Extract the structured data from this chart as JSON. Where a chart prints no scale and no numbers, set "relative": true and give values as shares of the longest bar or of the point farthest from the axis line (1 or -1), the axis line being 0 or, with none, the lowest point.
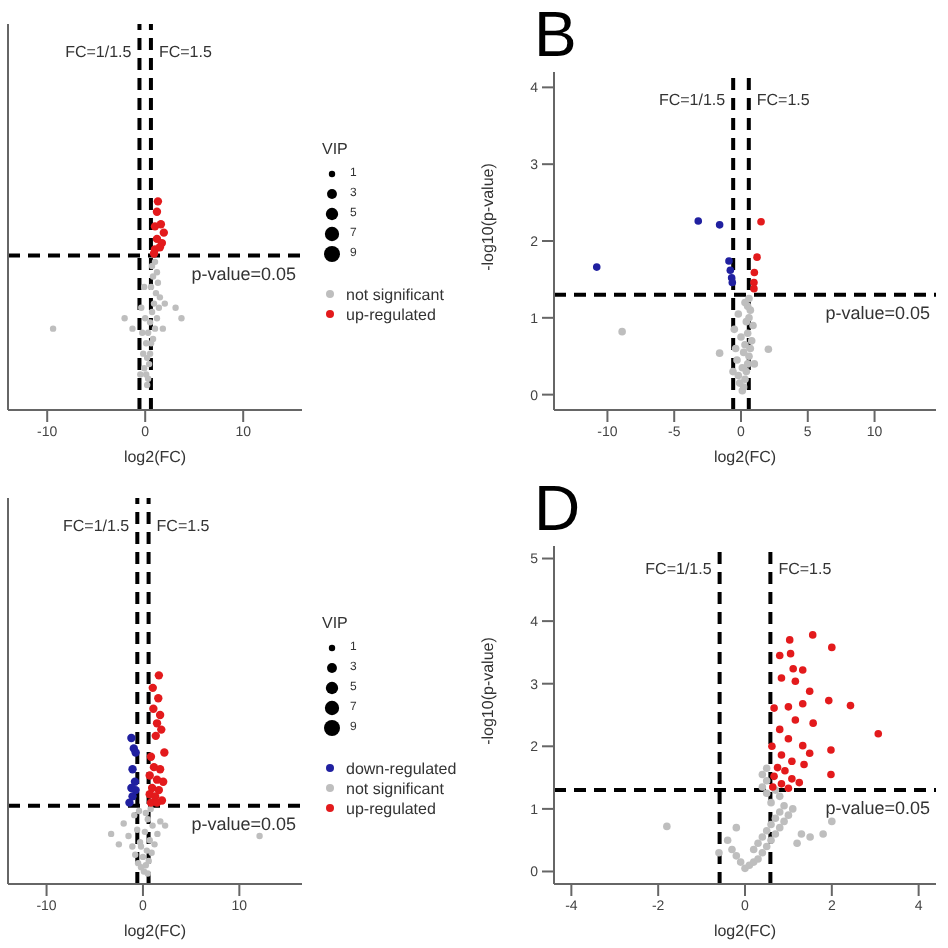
{
  "chart_data": [
    {
      "type": "bubble",
      "relative": true,
      "xlabel": "log2(FC)",
      "xlim": [
        -14,
        16
      ],
      "xticks": [
        -10,
        0,
        10
      ],
      "marker": "circle",
      "legend": "right",
      "legend_title": "VIP",
      "size_legend": [
        1,
        3,
        5,
        7,
        9
      ],
      "ref_lines": [
        {
          "axis": "x",
          "value": -0.585,
          "color": "#000000",
          "line_style": "dashed"
        },
        {
          "axis": "x",
          "value": 0.585,
          "color": "#000000",
          "line_style": "dashed"
        },
        {
          "axis": "y",
          "value": 0.74,
          "color": "#000000",
          "line_style": "dashed"
        }
      ],
      "annotations": [
        {
          "text": "FC=1/1.5",
          "x": -0.585,
          "y": 1.72
        },
        {
          "text": "FC=1.5",
          "x": 0.585,
          "y": 1.72
        },
        {
          "text": "p-value=0.05",
          "x": 16,
          "y": 0.74
        }
      ],
      "series": [
        {
          "name": "not significant",
          "color": "#bebebe",
          "x": [
            0.2,
            0.1,
            0.3,
            -0.1,
            0.4,
            0.2,
            0.5,
            -0.2,
            0.6,
            0.1,
            0.8,
            0.3,
            1.0,
            -0.3,
            0.5,
            1.2,
            0.7,
            1.4,
            0.9,
            1.5,
            1.1,
            0.6,
            1.3,
            0.8,
            1.2,
            0.7,
            1.0,
            -0.4,
            -0.5,
            0.0,
            2.0,
            1.8,
            -0.1,
            -2.1,
            -1.3,
            3.1,
            3.7,
            -9.4
          ],
          "values": [
            0.12,
            0.17,
            0.15,
            0.2,
            0.22,
            0.25,
            0.27,
            0.27,
            0.32,
            0.32,
            0.34,
            0.37,
            0.39,
            0.37,
            0.42,
            0.44,
            0.47,
            0.49,
            0.51,
            0.54,
            0.56,
            0.59,
            0.61,
            0.64,
            0.66,
            0.69,
            0.71,
            0.49,
            0.17,
            0.44,
            0.51,
            0.39,
            0.59,
            0.44,
            0.39,
            0.49,
            0.44,
            0.39
          ],
          "sizes": [
            1,
            1,
            1,
            1,
            1,
            1,
            1,
            1,
            1,
            1,
            1,
            1,
            1,
            1,
            1,
            1,
            1,
            1,
            1,
            1,
            1,
            1,
            1,
            1,
            1,
            1,
            1,
            1,
            1,
            1,
            1,
            1,
            1,
            1,
            1,
            1,
            1,
            1
          ]
        },
        {
          "name": "up-regulated",
          "color": "#e31a1c",
          "x": [
            1.3,
            1.2,
            1.0,
            1.6,
            1.9,
            1.2,
            1.7,
            1.0,
            1.5,
            0.9
          ],
          "values": [
            1.0,
            0.95,
            0.88,
            0.89,
            0.85,
            0.82,
            0.8,
            0.77,
            0.78,
            0.75
          ],
          "sizes": [
            2,
            2,
            2,
            2,
            2,
            2,
            2,
            2,
            2,
            2
          ]
        }
      ]
    },
    {
      "type": "scatter",
      "title": "B",
      "xlabel": "log2(FC)",
      "ylabel": "-log10(p-value)",
      "xlim": [
        -14,
        14.6
      ],
      "ylim": [
        -0.2,
        4.2
      ],
      "xticks": [
        -10,
        -5,
        0,
        5,
        10
      ],
      "yticks": [
        0,
        1,
        2,
        3,
        4
      ],
      "marker": "circle",
      "ref_lines": [
        {
          "axis": "x",
          "value": -0.585,
          "color": "#000000",
          "line_style": "dashed"
        },
        {
          "axis": "x",
          "value": 0.585,
          "color": "#000000",
          "line_style": "dashed"
        },
        {
          "axis": "y",
          "value": 1.301,
          "color": "#000000",
          "line_style": "dashed"
        }
      ],
      "annotations": [
        {
          "text": "FC=1/1.5",
          "x": -0.585,
          "y": 3.85
        },
        {
          "text": "FC=1.5",
          "x": 0.585,
          "y": 3.85
        },
        {
          "text": "p-value=0.05",
          "x": 14.6,
          "y": 1.301
        }
      ],
      "series": [
        {
          "color": "#bebebe",
          "x": [
            0.1,
            0.2,
            -0.1,
            0.3,
            -0.2,
            0.4,
            0.1,
            0.5,
            -0.3,
            0.6,
            0.2,
            0.7,
            -0.4,
            0.3,
            0.8,
            0.0,
            0.5,
            -0.5,
            0.9,
            0.4,
            0.6,
            -0.2,
            0.7,
            0.5,
            0.3,
            0.6,
            -0.6,
            1.0,
            -8.9,
            -1.6,
            2.05
          ],
          "values": [
            0.05,
            0.1,
            0.15,
            0.2,
            0.25,
            0.3,
            0.35,
            0.4,
            0.45,
            0.5,
            0.55,
            0.6,
            0.6,
            0.65,
            0.7,
            0.75,
            0.8,
            0.85,
            0.9,
            0.95,
            1.0,
            1.05,
            1.1,
            1.15,
            1.2,
            1.25,
            0.3,
            0.4,
            0.82,
            0.54,
            0.59
          ]
        },
        {
          "color": "#2020a0",
          "x": [
            -3.2,
            -1.6,
            -10.8,
            -0.9,
            -0.8,
            -0.7,
            -0.65
          ],
          "values": [
            2.26,
            2.21,
            1.66,
            1.74,
            1.62,
            1.52,
            1.46
          ]
        },
        {
          "color": "#e31a1c",
          "x": [
            1.5,
            1.2,
            1.0,
            0.97,
            0.97
          ],
          "values": [
            2.25,
            1.79,
            1.59,
            1.46,
            1.38
          ]
        }
      ]
    },
    {
      "type": "bubble",
      "relative": true,
      "xlabel": "log2(FC)",
      "xlim": [
        -14,
        16.5
      ],
      "xticks": [
        -10,
        0,
        10
      ],
      "marker": "circle",
      "legend": "right",
      "legend_title": "VIP",
      "size_legend": [
        1,
        3,
        5,
        7,
        9
      ],
      "ref_lines": [
        {
          "axis": "x",
          "value": -0.585,
          "color": "#000000",
          "line_style": "dashed"
        },
        {
          "axis": "x",
          "value": 0.585,
          "color": "#000000",
          "line_style": "dashed"
        },
        {
          "axis": "y",
          "value": 0.375,
          "color": "#000000",
          "line_style": "dashed"
        }
      ],
      "annotations": [
        {
          "text": "FC=1/1.5",
          "x": -0.585,
          "y": 1.72
        },
        {
          "text": "FC=1.5",
          "x": 0.585,
          "y": 1.72
        },
        {
          "text": "p-value=0.05",
          "x": 16.5,
          "y": 0.375
        }
      ],
      "series": [
        {
          "name": "down-regulated",
          "color": "#2020a0",
          "x": [
            -1.2,
            -0.95,
            -0.76,
            -1.08,
            -0.83,
            -1.2,
            -0.76,
            -1.08,
            -1.4
          ],
          "values": [
            0.7,
            0.65,
            0.63,
            0.55,
            0.49,
            0.46,
            0.45,
            0.42,
            0.39
          ],
          "sizes": [
            2,
            2,
            2,
            2,
            2,
            2,
            2,
            2,
            2
          ]
        },
        {
          "name": "not significant",
          "color": "#bebebe",
          "x": [
            0.1,
            -0.2,
            0.3,
            -0.5,
            0.6,
            0.0,
            -0.8,
            0.9,
            0.4,
            -1.1,
            1.2,
            -0.3,
            0.7,
            -1.5,
            1.5,
            0.2,
            -0.6,
            1.0,
            -2.0,
            1.8,
            0.5,
            -0.9,
            0.3,
            -0.4,
            0.8,
            -0.2,
            0.5,
            12.1,
            -3.3,
            -2.5,
            2.3
          ],
          "values": [
            0.06,
            0.08,
            0.09,
            0.1,
            0.11,
            0.13,
            0.14,
            0.15,
            0.16,
            0.18,
            0.19,
            0.2,
            0.21,
            0.23,
            0.24,
            0.25,
            0.26,
            0.28,
            0.29,
            0.3,
            0.31,
            0.33,
            0.34,
            0.35,
            0.36,
            0.18,
            0.05,
            0.23,
            0.24,
            0.19,
            0.28
          ],
          "sizes": [
            1,
            1,
            1,
            1,
            1,
            1,
            1,
            1,
            1,
            1,
            1,
            1,
            1,
            1,
            1,
            1,
            1,
            1,
            1,
            1,
            1,
            1,
            1,
            1,
            1,
            1,
            1,
            1,
            1,
            1,
            1
          ]
        },
        {
          "name": "up-regulated",
          "color": "#e31a1c",
          "x": [
            1.65,
            1.02,
            1.59,
            1.08,
            1.78,
            1.46,
            1.9,
            1.33,
            2.22,
            0.83,
            1.14,
            1.78,
            0.7,
            1.46,
            2.1,
            0.95,
            1.65,
            0.7,
            1.27,
            1.97,
            0.83,
            1.46
          ],
          "values": [
            1.0,
            0.94,
            0.89,
            0.84,
            0.81,
            0.77,
            0.74,
            0.71,
            0.63,
            0.61,
            0.56,
            0.55,
            0.52,
            0.5,
            0.49,
            0.46,
            0.45,
            0.43,
            0.42,
            0.4,
            0.39,
            0.39
          ],
          "sizes": [
            2,
            2,
            2,
            2,
            2,
            2,
            2,
            2,
            2,
            2,
            2,
            2,
            2,
            2,
            2,
            2,
            2,
            2,
            2,
            2,
            2,
            2
          ]
        }
      ]
    },
    {
      "type": "scatter",
      "title": "D",
      "xlabel": "log2(FC)",
      "ylabel": "-log10(p-value)",
      "xlim": [
        -4.4,
        4.4
      ],
      "ylim": [
        -0.2,
        5.2
      ],
      "xticks": [
        -4,
        -2,
        0,
        2,
        4
      ],
      "yticks": [
        0,
        1,
        2,
        3,
        4,
        5
      ],
      "marker": "circle",
      "ref_lines": [
        {
          "axis": "x",
          "value": -0.585,
          "color": "#000000",
          "line_style": "dashed"
        },
        {
          "axis": "x",
          "value": 0.585,
          "color": "#000000",
          "line_style": "dashed"
        },
        {
          "axis": "y",
          "value": 1.301,
          "color": "#000000",
          "line_style": "dashed"
        }
      ],
      "annotations": [
        {
          "text": "FC=1/1.5",
          "x": -0.585,
          "y": 4.85
        },
        {
          "text": "FC=1.5",
          "x": 0.585,
          "y": 4.85
        },
        {
          "text": "p-value=0.05",
          "x": 4.4,
          "y": 1.301
        }
      ],
      "series": [
        {
          "color": "#bebebe",
          "x": [
            0.0,
            0.1,
            0.2,
            -0.1,
            0.3,
            -0.2,
            0.4,
            0.2,
            -0.3,
            0.5,
            0.3,
            0.6,
            -0.4,
            0.4,
            0.7,
            0.5,
            0.8,
            0.6,
            0.9,
            0.7,
            1.0,
            0.8,
            1.1,
            0.9,
            0.6,
            0.8,
            0.5,
            0.7,
            0.4,
            0.5,
            0.4,
            0.5,
            1.3,
            1.5,
            1.2,
            -0.2,
            -1.8,
            1.8,
            2.0,
            -0.6
          ],
          "values": [
            0.05,
            0.1,
            0.15,
            0.15,
            0.2,
            0.25,
            0.3,
            0.35,
            0.35,
            0.4,
            0.45,
            0.5,
            0.5,
            0.55,
            0.6,
            0.65,
            0.7,
            0.75,
            0.8,
            0.85,
            0.9,
            0.95,
            1.0,
            1.05,
            1.1,
            1.2,
            1.25,
            1.3,
            1.35,
            1.45,
            1.55,
            1.65,
            0.6,
            0.55,
            0.45,
            0.7,
            0.72,
            0.6,
            0.8,
            0.3
          ]
        },
        {
          "color": "#e31a1c",
          "x": [
            1.56,
            1.03,
            2.0,
            0.8,
            1.05,
            1.11,
            1.33,
            0.84,
            1.16,
            1.49,
            0.67,
            1.0,
            1.33,
            2.43,
            1.93,
            1.16,
            1.57,
            0.8,
            3.07,
            1.0,
            0.62,
            1.33,
            1.98,
            1.49,
            0.84,
            1.08,
            0.75,
            1.36,
            1.98,
            0.92,
            0.67,
            1.08,
            0.84,
            1.25,
            0.64,
            1.0
          ],
          "values": [
            3.78,
            3.7,
            3.58,
            3.45,
            3.48,
            3.24,
            3.22,
            3.09,
            3.04,
            2.88,
            2.61,
            2.63,
            2.68,
            2.65,
            2.73,
            2.42,
            2.37,
            2.27,
            2.2,
            2.12,
            2.0,
            2.01,
            1.94,
            1.89,
            1.86,
            1.76,
            1.66,
            1.71,
            1.55,
            1.61,
            1.52,
            1.48,
            1.4,
            1.42,
            1.35,
            1.33
          ]
        }
      ]
    }
  ]
}
